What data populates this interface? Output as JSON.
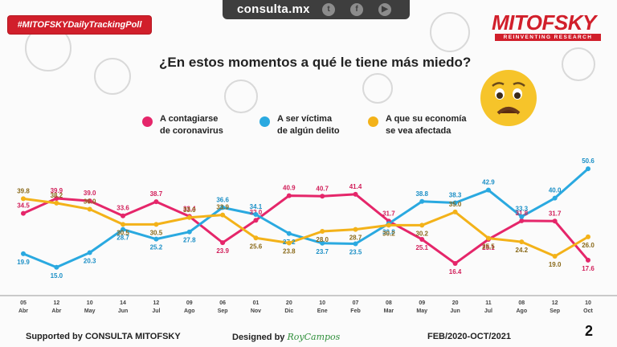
{
  "header": {
    "site": "consulta.mx",
    "social": [
      {
        "name": "twitter-icon",
        "glyph": "t"
      },
      {
        "name": "facebook-icon",
        "glyph": "f"
      },
      {
        "name": "youtube-icon",
        "glyph": "▶"
      }
    ],
    "hashtag": "#MITOFSKYDailyTrackingPoll",
    "logo_main": "MITOFSKY",
    "logo_sub": "REINVENTING RESEARCH"
  },
  "question": "¿En estos momentos a qué le tiene más miedo?",
  "legend": [
    {
      "line1": "A contagiarse",
      "line2": "de coronavirus",
      "color": "#e5266a"
    },
    {
      "line1": "A ser víctima",
      "line2": "de algún delito",
      "color": "#2aa9e0"
    },
    {
      "line1": "A que su economía",
      "line2": "se vea afectada",
      "color": "#f3b219"
    }
  ],
  "chart_data": {
    "type": "line",
    "title": "¿En estos momentos a qué le tiene más miedo?",
    "x_day": [
      "05",
      "12",
      "10",
      "14",
      "12",
      "09",
      "06",
      "01",
      "20",
      "10",
      "07",
      "08",
      "09",
      "20",
      "11",
      "08",
      "12",
      "10"
    ],
    "x_month": [
      "Abr",
      "Abr",
      "May",
      "Jun",
      "Jul",
      "Ago",
      "Sep",
      "Nov",
      "Dic",
      "Ene",
      "Feb",
      "Mar",
      "May",
      "Jun",
      "Jul",
      "Ago",
      "Sep",
      "Oct"
    ],
    "ylim": [
      10,
      55
    ],
    "series": [
      {
        "name": "A contagiarse de coronavirus",
        "color": "#e5266a",
        "label_color": "#d11f5a",
        "values": [
          34.5,
          39.9,
          39.0,
          33.6,
          38.7,
          33.4,
          23.9,
          32.0,
          40.9,
          40.7,
          41.4,
          31.7,
          25.1,
          16.4,
          25.1,
          31.8,
          31.7,
          17.6
        ]
      },
      {
        "name": "A ser víctima de algún delito",
        "color": "#2aa9e0",
        "label_color": "#1b8fc6",
        "values": [
          19.9,
          15.0,
          20.3,
          28.7,
          25.2,
          27.8,
          36.6,
          34.1,
          27.2,
          23.7,
          23.5,
          30.8,
          38.8,
          38.3,
          42.9,
          33.3,
          40.0,
          50.6
        ]
      },
      {
        "name": "A que su economía se vea afectada",
        "color": "#f3b219",
        "label_color": "#8a6a1a",
        "values": [
          39.8,
          38.2,
          36.0,
          30.5,
          30.5,
          33.0,
          33.9,
          25.6,
          23.8,
          28.0,
          28.7,
          30.2,
          30.2,
          35.0,
          25.5,
          24.2,
          19.0,
          26.0
        ]
      }
    ]
  },
  "footer": {
    "supported": "Supported by  CONSULTA  MITOFSKY",
    "designed": "Designed by",
    "signature": "RoyCampos",
    "period": "FEB/2020-OCT/2021",
    "page": "2"
  },
  "colors": {
    "brand": "#d11f2b",
    "bar": "#3e3e3e"
  }
}
